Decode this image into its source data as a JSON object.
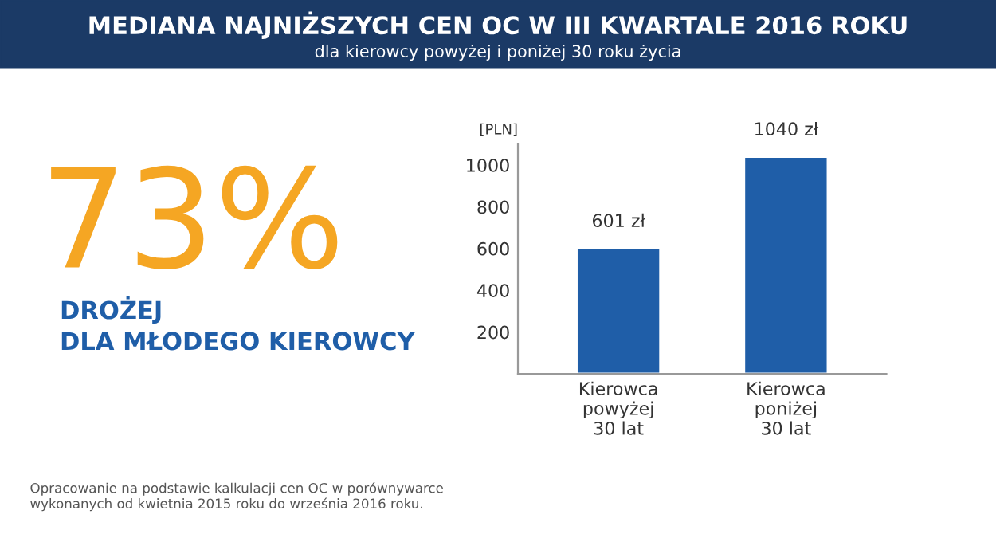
{
  "chart_data": {
    "type": "bar",
    "title": "MEDIANA NAJNIŻSZYCH CEN OC W III KWARTALE 2016 ROKU",
    "subtitle": "dla kierowcy powyżej i poniżej 30 roku życia",
    "ylabel": "[PLN]",
    "categories": [
      "Kierowca\npowyżej\n30 lat",
      "Kierowca\nponiżej\n30 lat"
    ],
    "values": [
      601,
      1040
    ],
    "value_labels": [
      "601 zł",
      "1040 zł"
    ],
    "color": "#1f5ea8",
    "ylim": [
      0,
      1100
    ],
    "yticks": [
      200,
      400,
      600,
      800,
      1000
    ],
    "grid": false,
    "legend": false,
    "annotations": [
      "73%",
      "DROŻEJ\nDLA MŁODEGO KIEROWCY",
      "Opracowanie na podstawie kalkulacji cen OC w porównywarce\nwykonanych od kwietnia 2015 roku do września 2016 roku."
    ]
  }
}
